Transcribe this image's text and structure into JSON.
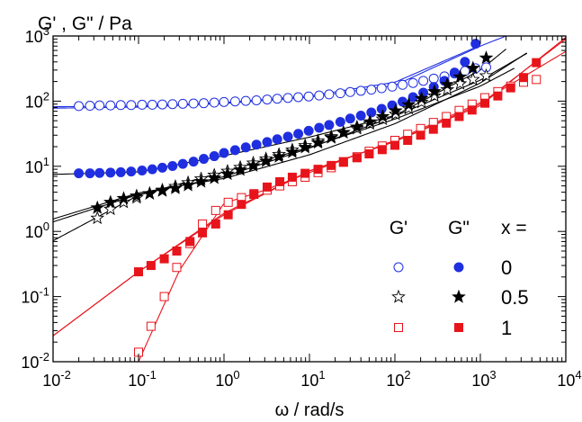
{
  "chart_data": {
    "type": "scatter",
    "title": "",
    "ylabel": "G' , G\" / Pa",
    "xlabel": "ω / rad/s",
    "xscale": "log",
    "yscale": "log",
    "xlim": [
      0.01,
      10000
    ],
    "ylim": [
      0.01,
      1000
    ],
    "x_ticks": [
      {
        "base": "10",
        "exp": "-2",
        "value": 0.01
      },
      {
        "base": "10",
        "exp": "-1",
        "value": 0.1
      },
      {
        "base": "10",
        "exp": "0",
        "value": 1
      },
      {
        "base": "10",
        "exp": "1",
        "value": 10
      },
      {
        "base": "10",
        "exp": "2",
        "value": 100
      },
      {
        "base": "10",
        "exp": "3",
        "value": 1000
      },
      {
        "base": "10",
        "exp": "4",
        "value": 10000
      }
    ],
    "y_ticks": [
      {
        "base": "10",
        "exp": "-2",
        "value": 0.01
      },
      {
        "base": "10",
        "exp": "-1",
        "value": 0.1
      },
      {
        "base": "10",
        "exp": "0",
        "value": 1
      },
      {
        "base": "10",
        "exp": "1",
        "value": 10
      },
      {
        "base": "10",
        "exp": "2",
        "value": 100
      },
      {
        "base": "10",
        "exp": "3",
        "value": 1000
      }
    ],
    "legend": {
      "placement": "bottom-right",
      "header_gp": "G'",
      "header_gpp": "G\"",
      "header_x": "x =",
      "rows": [
        {
          "x": "0",
          "color": "#1f2fe0",
          "marker": "circle"
        },
        {
          "x": "0.5",
          "color": "#000000",
          "marker": "star"
        },
        {
          "x": "1",
          "color": "#e8141b",
          "marker": "square"
        }
      ]
    },
    "series": [
      {
        "quantity": "G'",
        "x_value": "0",
        "color": "#1f2fe0",
        "marker": "circle",
        "filled": false,
        "x": [
          0.02,
          0.027,
          0.035,
          0.047,
          0.062,
          0.082,
          0.11,
          0.145,
          0.19,
          0.25,
          0.33,
          0.44,
          0.58,
          0.77,
          1.0,
          1.35,
          1.8,
          2.4,
          3.2,
          4.2,
          5.6,
          7.4,
          9.8,
          13,
          17,
          23,
          30,
          40,
          53,
          70,
          93,
          123,
          163,
          215,
          285,
          380,
          500,
          660,
          880,
          1170
        ],
        "y": [
          84,
          85,
          86,
          86,
          87,
          87,
          88,
          88,
          89,
          90,
          91,
          92,
          93,
          95,
          97,
          99,
          101,
          103,
          106,
          109,
          112,
          115,
          118,
          122,
          127,
          132,
          138,
          144,
          150,
          158,
          167,
          178,
          190,
          205,
          222,
          240,
          265,
          290,
          320,
          330
        ]
      },
      {
        "quantity": "G\"",
        "x_value": "0",
        "color": "#1f2fe0",
        "marker": "circle",
        "filled": true,
        "x": [
          0.02,
          0.027,
          0.035,
          0.047,
          0.062,
          0.082,
          0.11,
          0.145,
          0.19,
          0.25,
          0.33,
          0.44,
          0.58,
          0.77,
          1.0,
          1.35,
          1.8,
          2.4,
          3.2,
          4.2,
          5.6,
          7.4,
          9.8,
          13,
          17,
          23,
          30,
          40,
          53,
          70,
          93,
          123,
          163,
          215,
          285,
          380,
          500,
          660,
          880
        ],
        "y": [
          7.8,
          7.8,
          7.9,
          8.0,
          8.1,
          8.3,
          8.6,
          9.0,
          9.5,
          10.1,
          10.9,
          11.8,
          13,
          14.3,
          16,
          17.7,
          19.5,
          21.5,
          23.5,
          26,
          28.5,
          31.5,
          35,
          39,
          43,
          48,
          54,
          60,
          67,
          76,
          86,
          98,
          115,
          135,
          165,
          205,
          275,
          400,
          760
        ]
      },
      {
        "quantity": "G'",
        "x_value": "0.5",
        "color": "#000000",
        "marker": "star",
        "filled": false,
        "x": [
          0.033,
          0.047,
          0.067,
          0.095,
          0.135,
          0.19,
          0.27,
          0.38,
          0.54,
          0.77,
          1.1,
          1.55,
          2.2,
          3.1,
          4.4,
          6.3,
          8.9,
          12.6,
          18,
          25,
          36,
          51,
          72,
          102,
          145,
          205,
          290,
          410,
          580,
          820,
          1170
        ],
        "y": [
          1.6,
          2.2,
          2.8,
          3.3,
          3.8,
          4.3,
          4.9,
          5.6,
          6.4,
          7.3,
          8.4,
          9.6,
          11.2,
          13,
          15.2,
          17.8,
          20.8,
          24.5,
          28.5,
          33,
          38,
          45,
          53,
          63,
          77,
          96,
          120,
          150,
          185,
          215,
          245
        ]
      },
      {
        "quantity": "G\"",
        "x_value": "0.5",
        "color": "#000000",
        "marker": "star",
        "filled": true,
        "x": [
          0.033,
          0.047,
          0.067,
          0.095,
          0.135,
          0.19,
          0.27,
          0.38,
          0.54,
          0.77,
          1.1,
          1.55,
          2.2,
          3.1,
          4.4,
          6.3,
          8.9,
          12.6,
          18,
          25,
          36,
          51,
          72,
          102,
          145,
          205,
          290,
          410,
          580,
          820,
          1170
        ],
        "y": [
          2.3,
          2.8,
          3.2,
          3.5,
          3.8,
          4.2,
          4.6,
          5.1,
          5.8,
          6.6,
          7.6,
          8.8,
          10.2,
          12,
          14,
          16.5,
          19.5,
          23,
          27.5,
          33,
          40,
          48,
          58,
          71,
          88,
          110,
          140,
          180,
          235,
          320,
          460
        ]
      },
      {
        "quantity": "G'",
        "x_value": "1",
        "color": "#e8141b",
        "marker": "square",
        "filled": false,
        "x": [
          0.1,
          0.14,
          0.2,
          0.28,
          0.4,
          0.56,
          0.8,
          1.12,
          1.6,
          2.24,
          3.2,
          4.5,
          6.3,
          8.9,
          12.6,
          18,
          25,
          36,
          50,
          71,
          100,
          141,
          200,
          282,
          400,
          565,
          800,
          1130,
          1600,
          2260,
          3200,
          4520
        ],
        "y": [
          0.014,
          0.035,
          0.1,
          0.28,
          0.65,
          1.3,
          2.1,
          2.8,
          3.3,
          3.8,
          4.3,
          5,
          5.8,
          6.8,
          8,
          9.5,
          11.5,
          14,
          17,
          20.5,
          25,
          31,
          38,
          47,
          58,
          72,
          90,
          113,
          140,
          170,
          195,
          215
        ]
      },
      {
        "quantity": "G\"",
        "x_value": "1",
        "color": "#e8141b",
        "marker": "square",
        "filled": true,
        "x": [
          0.1,
          0.14,
          0.2,
          0.28,
          0.4,
          0.56,
          0.8,
          1.12,
          1.6,
          2.24,
          3.2,
          4.5,
          6.3,
          8.9,
          12.6,
          18,
          25,
          36,
          50,
          71,
          100,
          141,
          200,
          282,
          400,
          565,
          800,
          1130,
          1600,
          2260,
          3200,
          4520
        ],
        "y": [
          0.24,
          0.3,
          0.38,
          0.5,
          0.7,
          0.95,
          1.3,
          1.8,
          2.6,
          3.7,
          4.8,
          5.8,
          6.8,
          7.8,
          9,
          10.3,
          11.8,
          13.5,
          15.5,
          18,
          21,
          25,
          30,
          37,
          46,
          58,
          73,
          93,
          120,
          160,
          230,
          390
        ]
      }
    ],
    "fit_lines": [
      {
        "color": "#1f2fe0",
        "x": [
          0.01,
          0.1,
          1,
          10,
          100,
          1000,
          2000
        ],
        "y": [
          78,
          81,
          92,
          115,
          175,
          700,
          1000
        ]
      },
      {
        "color": "#1f2fe0",
        "x": [
          0.01,
          0.1,
          1,
          10,
          100,
          1000
        ],
        "y": [
          82,
          84,
          95,
          120,
          195,
          720
        ]
      },
      {
        "color": "#000000",
        "x": [
          0.01,
          0.1,
          1,
          10,
          100,
          1000,
          2500
        ],
        "y": [
          0.72,
          3.6,
          8.2,
          19.5,
          53,
          170,
          320
        ]
      },
      {
        "color": "#000000",
        "x": [
          0.01,
          0.1,
          1,
          10,
          100,
          1000,
          3500
        ],
        "y": [
          1.55,
          3.9,
          6.5,
          15,
          45,
          190,
          550
        ]
      },
      {
        "color": "#000000",
        "x": [
          0.01,
          0.1,
          1,
          10,
          100,
          1000,
          3500
        ],
        "y": [
          1.4,
          3.7,
          6.9,
          19,
          59,
          210,
          540
        ]
      },
      {
        "color": "#000000",
        "x": [
          0.01,
          0.1,
          1,
          10,
          100,
          1000,
          2000
        ],
        "y": [
          7.5,
          8.2,
          14.5,
          28,
          60,
          300,
          630
        ]
      },
      {
        "color": "#e8141b",
        "x": [
          0.01,
          0.1,
          1,
          10,
          100,
          1000,
          10000
        ],
        "y": [
          0.025,
          0.24,
          1.8,
          8.5,
          24,
          85,
          950
        ]
      },
      {
        "color": "#e8141b",
        "x": [
          0.01,
          0.1,
          1,
          10,
          100,
          1000,
          10000
        ],
        "y": [
          0.025,
          0.24,
          1.9,
          8.5,
          24,
          90,
          900
        ]
      },
      {
        "color": "#e8141b",
        "x": [
          0.1,
          0.3,
          1,
          3,
          10,
          100,
          1000,
          10000
        ],
        "y": [
          0.01,
          0.25,
          2.7,
          4.3,
          8,
          25,
          95,
          580
        ]
      }
    ]
  }
}
